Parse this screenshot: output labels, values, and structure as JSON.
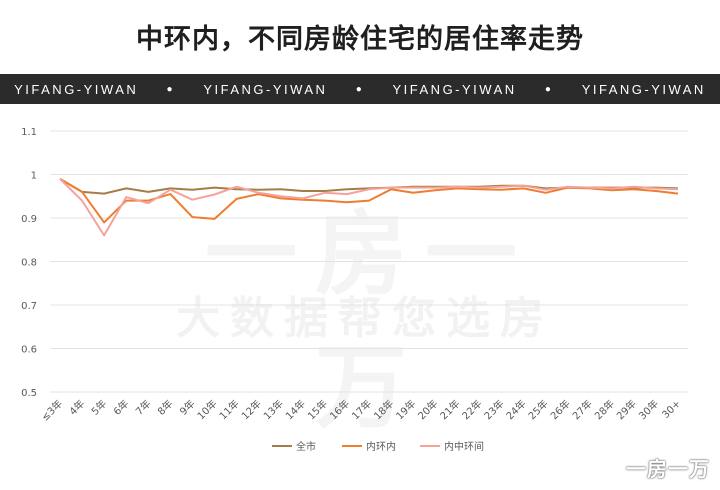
{
  "title": "中环内，不同房龄住宅的居住率走势",
  "banner": [
    "YIFANG-YIWAN",
    "YIFANG-YIWAN",
    "YIFANG-YIWAN",
    "YIFANG-YIWAN"
  ],
  "banner_separator": "●",
  "watermark": {
    "main": "一房一万",
    "sub": "大数据帮您选房"
  },
  "brand": "一房一万",
  "colors": {
    "series_1": "#a67c48",
    "series_2": "#ee7d31",
    "series_3": "#f5a39a",
    "grid": "#e3e3e3"
  },
  "chart_data": {
    "type": "line",
    "categories": [
      "≤3年",
      "4年",
      "5年",
      "6年",
      "7年",
      "8年",
      "9年",
      "10年",
      "11年",
      "12年",
      "13年",
      "14年",
      "15年",
      "16年",
      "17年",
      "18年",
      "19年",
      "20年",
      "21年",
      "22年",
      "23年",
      "24年",
      "25年",
      "26年",
      "27年",
      "28年",
      "29年",
      "30年",
      "30+"
    ],
    "series": [
      {
        "name": "全市",
        "values": [
          0.99,
          0.96,
          0.956,
          0.968,
          0.96,
          0.968,
          0.965,
          0.97,
          0.966,
          0.965,
          0.966,
          0.962,
          0.962,
          0.966,
          0.968,
          0.97,
          0.972,
          0.972,
          0.972,
          0.972,
          0.974,
          0.974,
          0.968,
          0.97,
          0.97,
          0.97,
          0.97,
          0.97,
          0.968
        ]
      },
      {
        "name": "内环内",
        "values": [
          0.99,
          0.96,
          0.89,
          0.94,
          0.94,
          0.955,
          0.902,
          0.898,
          0.944,
          0.955,
          0.945,
          0.942,
          0.94,
          0.936,
          0.94,
          0.966,
          0.958,
          0.964,
          0.968,
          0.966,
          0.965,
          0.968,
          0.958,
          0.97,
          0.968,
          0.964,
          0.966,
          0.962,
          0.956
        ]
      },
      {
        "name": "内中环间",
        "values": [
          0.99,
          0.94,
          0.86,
          0.948,
          0.934,
          0.965,
          0.942,
          0.954,
          0.972,
          0.958,
          0.95,
          0.945,
          0.958,
          0.955,
          0.966,
          0.97,
          0.97,
          0.97,
          0.972,
          0.97,
          0.972,
          0.974,
          0.965,
          0.972,
          0.97,
          0.968,
          0.972,
          0.968,
          0.966
        ]
      }
    ],
    "yticks": [
      "0.5",
      "0.6",
      "0.7",
      "0.8",
      "0.9",
      "1",
      "1.1"
    ],
    "ylim": [
      0.5,
      1.1
    ],
    "grid": true,
    "legend_position": "bottom"
  }
}
